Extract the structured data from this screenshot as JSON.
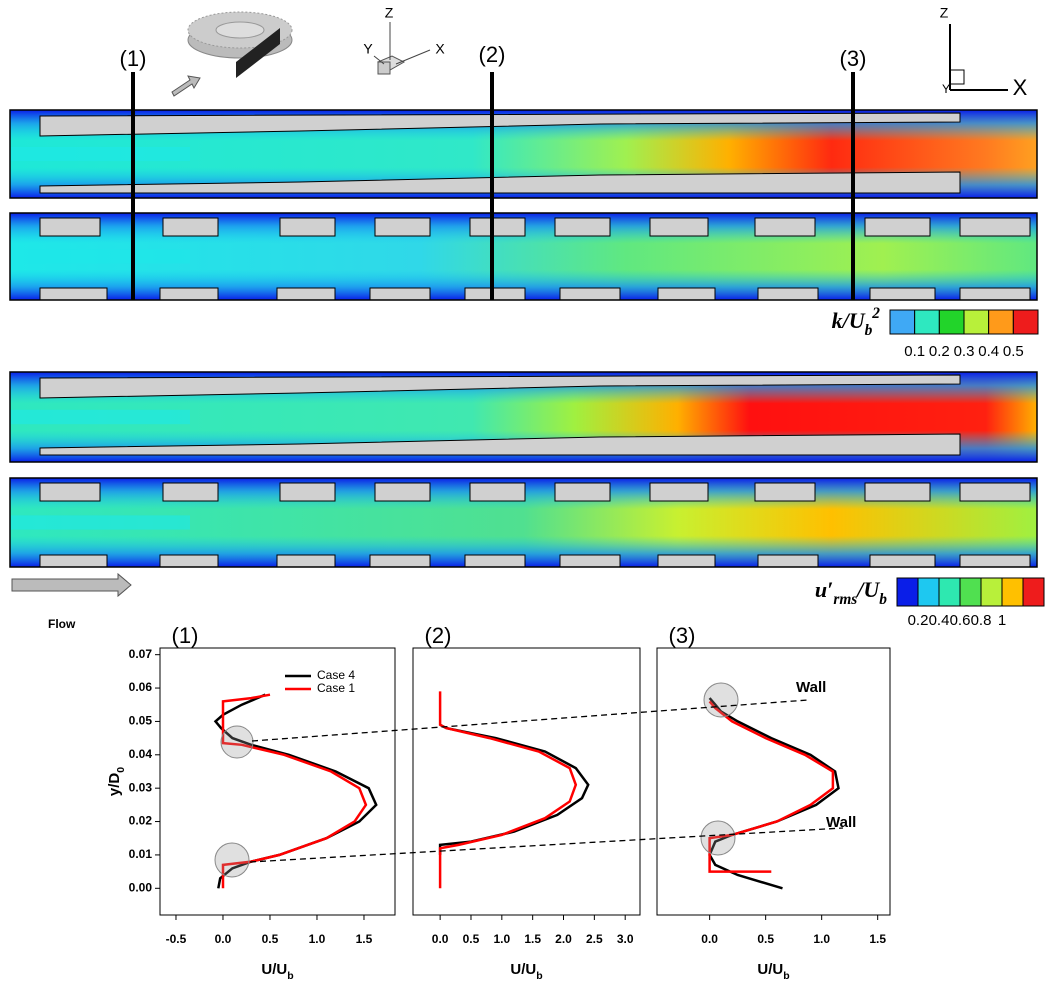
{
  "figure": {
    "section_markers": [
      "(1)",
      "(2)",
      "(3)"
    ],
    "axes_3d": {
      "z": "Z",
      "y": "Y",
      "x": "X"
    },
    "axes_2d": {
      "z": "Z",
      "y": "Y",
      "x": "X"
    },
    "flow_label": "Flow",
    "colorbars": [
      {
        "title": [
          {
            "text": "k/U"
          },
          {
            "text": "b",
            "sub": true
          },
          {
            "text": "2",
            "sup": true
          }
        ],
        "colors": [
          "#3fa9f5",
          "#2ee8c0",
          "#22d42a",
          "#b8f03a",
          "#ff9a1a",
          "#ee1c1c"
        ],
        "ticks": [
          0.1,
          0.2,
          0.3,
          0.4,
          0.5
        ]
      },
      {
        "title": [
          {
            "text": "u′"
          },
          {
            "text": "rms",
            "sub": true
          },
          {
            "text": "/U"
          },
          {
            "text": "b",
            "sub": true
          }
        ],
        "colors": [
          "#0a1ee8",
          "#1ec8f0",
          "#2ee8b0",
          "#50e050",
          "#b8f03a",
          "#ffc000",
          "#ee1c1c"
        ],
        "ticks": [
          0.2,
          0.4,
          0.6,
          0.8,
          1
        ]
      }
    ]
  },
  "chart_data": [
    {
      "type": "line",
      "title": "(1)",
      "xlabel": [
        {
          "text": "U/U"
        },
        {
          "text": "b",
          "sub": true
        }
      ],
      "ylabel": [
        {
          "text": "y/D"
        },
        {
          "text": "0",
          "sub": true
        }
      ],
      "xlim": [
        -0.67,
        1.83
      ],
      "ylim": [
        -0.008,
        0.072
      ],
      "xticks": [
        -0.5,
        {
          "value": 0,
          "label": "0.0"
        },
        0.5,
        {
          "value": 1,
          "label": "1.0"
        },
        1.5
      ],
      "yticks": [
        {
          "value": 0,
          "label": "0.00"
        },
        0.01,
        0.02,
        0.03,
        0.04,
        0.05,
        0.06,
        0.07
      ],
      "legend": "upper center",
      "series": [
        {
          "name": "Case 4",
          "color": "#000000",
          "x": [
            -0.05,
            -0.03,
            0.1,
            0.3,
            0.6,
            1.1,
            1.45,
            1.63,
            1.55,
            1.2,
            0.7,
            0.3,
            0.1,
            -0.02,
            -0.08,
            0.0,
            0.2,
            0.45
          ],
          "values": [
            0.0,
            0.003,
            0.006,
            0.008,
            0.01,
            0.015,
            0.02,
            0.025,
            0.03,
            0.035,
            0.04,
            0.043,
            0.045,
            0.048,
            0.05,
            0.052,
            0.055,
            0.058
          ]
        },
        {
          "name": "Case 1",
          "color": "#ff0000",
          "x": [
            0.0,
            0.0,
            0.3,
            0.6,
            1.1,
            1.4,
            1.52,
            1.45,
            1.15,
            0.65,
            0.2,
            0.0,
            0.0,
            0.0,
            0.3,
            0.5
          ],
          "values": [
            0.0,
            0.007,
            0.008,
            0.01,
            0.015,
            0.02,
            0.025,
            0.03,
            0.035,
            0.04,
            0.043,
            0.0435,
            0.05,
            0.056,
            0.057,
            0.058
          ]
        }
      ]
    },
    {
      "type": "line",
      "title": "(2)",
      "xlabel": [
        {
          "text": "U/U"
        },
        {
          "text": "b",
          "sub": true
        }
      ],
      "xlim": [
        -0.44,
        3.24
      ],
      "ylim": [
        -0.008,
        0.072
      ],
      "xticks": [
        {
          "value": 0,
          "label": "0.0"
        },
        0.5,
        {
          "value": 1,
          "label": "1.0"
        },
        1.5,
        {
          "value": 2,
          "label": "2.0"
        },
        2.5,
        {
          "value": 3,
          "label": "3.0"
        }
      ],
      "series": [
        {
          "color": "#000000",
          "x": [
            0.0,
            0.0,
            0.5,
            1.2,
            1.9,
            2.3,
            2.4,
            2.2,
            1.7,
            0.9,
            0.1,
            0.0
          ],
          "values": [
            0.01,
            0.013,
            0.014,
            0.017,
            0.022,
            0.027,
            0.031,
            0.036,
            0.041,
            0.045,
            0.048,
            0.049
          ]
        },
        {
          "color": "#ff0000",
          "x": [
            0.0,
            0.0,
            0.3,
            1.0,
            1.7,
            2.1,
            2.2,
            2.1,
            1.6,
            0.8,
            0.1,
            0.0,
            0.0
          ],
          "values": [
            0.0,
            0.012,
            0.013,
            0.016,
            0.021,
            0.026,
            0.031,
            0.036,
            0.041,
            0.045,
            0.048,
            0.049,
            0.059
          ]
        }
      ]
    },
    {
      "type": "line",
      "title": "(3)",
      "xlabel": [
        {
          "text": "U/U"
        },
        {
          "text": "b",
          "sub": true
        }
      ],
      "xlim": [
        -0.47,
        1.61
      ],
      "ylim": [
        -0.008,
        0.072
      ],
      "xticks": [
        {
          "value": 0,
          "label": "0.0"
        },
        0.5,
        {
          "value": 1,
          "label": "1.0"
        },
        1.5
      ],
      "annotations": [
        "Wall",
        "Wall"
      ],
      "series": [
        {
          "color": "#000000",
          "x": [
            0.65,
            0.25,
            0.05,
            0.0,
            0.05,
            0.2,
            0.6,
            0.95,
            1.15,
            1.12,
            0.9,
            0.55,
            0.25,
            0.1,
            0.05,
            0.0
          ],
          "values": [
            0.0,
            0.004,
            0.007,
            0.01,
            0.014,
            0.016,
            0.02,
            0.025,
            0.03,
            0.035,
            0.04,
            0.045,
            0.05,
            0.053,
            0.055,
            0.057
          ]
        },
        {
          "color": "#ff0000",
          "x": [
            0.55,
            0.0,
            0.0,
            0.2,
            0.6,
            0.9,
            1.1,
            1.1,
            0.85,
            0.5,
            0.2,
            0.05,
            0.0
          ],
          "values": [
            0.005,
            0.005,
            0.015,
            0.016,
            0.02,
            0.025,
            0.03,
            0.035,
            0.04,
            0.045,
            0.05,
            0.054,
            0.056
          ]
        }
      ]
    }
  ]
}
